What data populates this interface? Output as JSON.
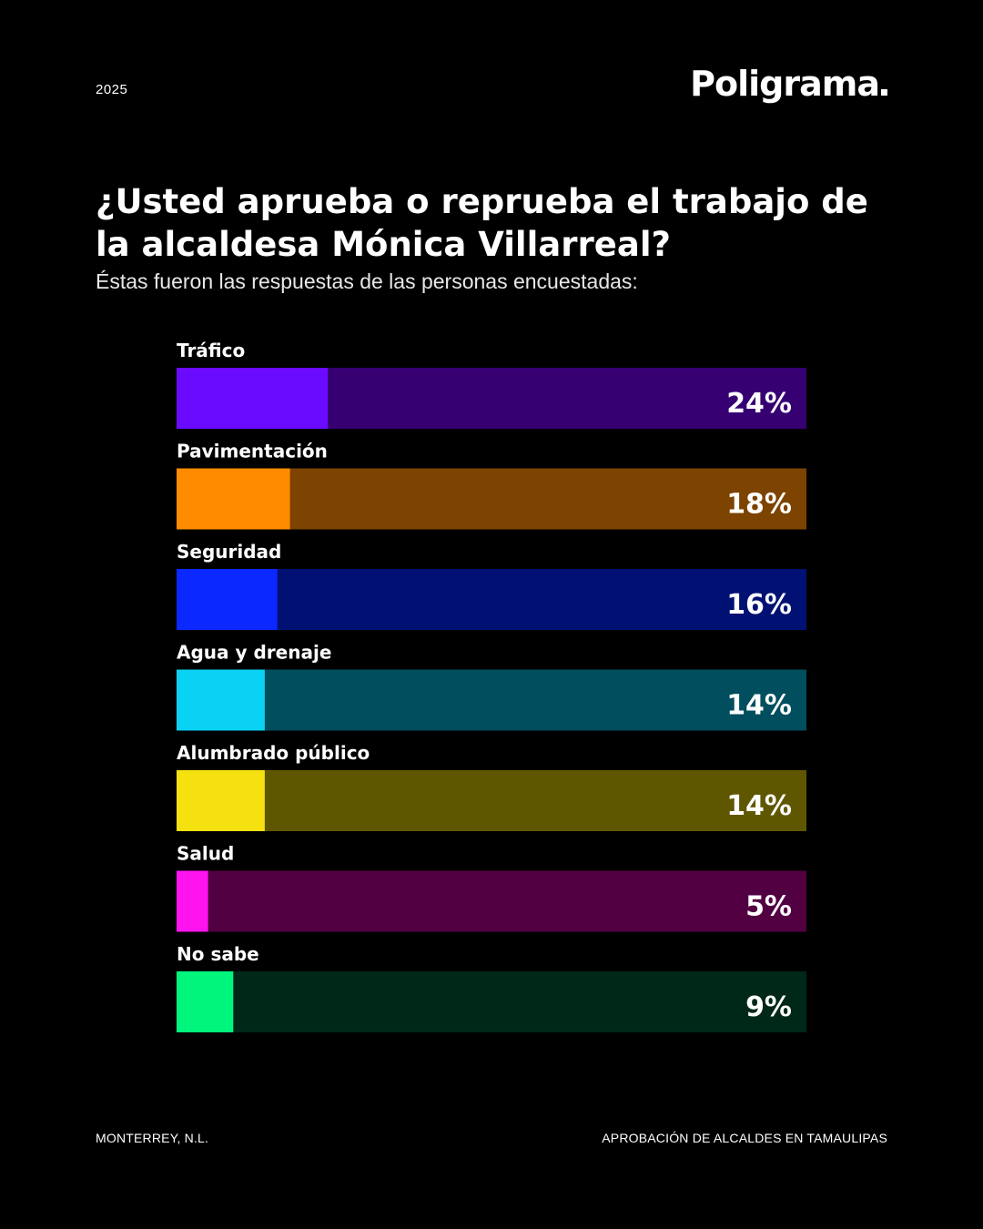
{
  "header": {
    "year": "2025",
    "logo": "Poligrama"
  },
  "question": {
    "title": "¿Usted aprueba o reprueba el trabajo de la alcaldesa Mónica Villarreal?",
    "subtitle": "Éstas fueron las respuestas de las personas encuestadas:"
  },
  "chart_data": {
    "type": "bar",
    "orientation": "horizontal",
    "categories": [
      "Tráfico",
      "Pavimentación",
      "Seguridad",
      "Agua y drenaje",
      "Alumbrado público",
      "Salud",
      "No sabe"
    ],
    "values": [
      24,
      18,
      16,
      14,
      14,
      5,
      9
    ],
    "labels": [
      "24%",
      "18%",
      "16%",
      "14%",
      "14%",
      "5%",
      "9%"
    ],
    "xlim": [
      0,
      100
    ],
    "grid": false,
    "colors": {
      "fill": [
        "#6a0aff",
        "#ff8c00",
        "#0a28ff",
        "#0ad2f5",
        "#f5e10f",
        "#ff14f0",
        "#00f57d"
      ],
      "track": [
        "#360073",
        "#7d4300",
        "#001173",
        "#004e5e",
        "#5f5700",
        "#520042",
        "#002818"
      ]
    }
  },
  "footer": {
    "location": "MONTERREY, N.L.",
    "series_title": "APROBACIÓN DE ALCALDES EN TAMAULIPAS"
  }
}
